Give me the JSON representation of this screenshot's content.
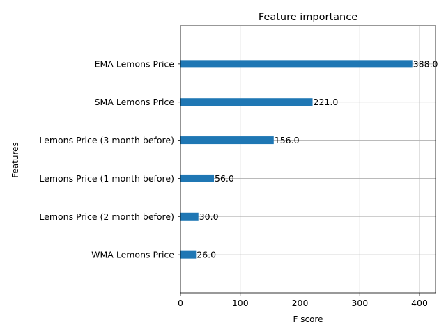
{
  "chart_data": {
    "type": "bar",
    "orientation": "horizontal",
    "title": "Feature importance",
    "xlabel": "F score",
    "ylabel": "Features",
    "categories": [
      "WMA Lemons Price",
      "Lemons Price (2 month before)",
      "Lemons Price (1 month before)",
      "Lemons Price (3 month before)",
      "SMA Lemons Price",
      "EMA Lemons Price"
    ],
    "values": [
      26.0,
      30.0,
      56.0,
      156.0,
      221.0,
      388.0
    ],
    "value_labels": [
      "26.0",
      "30.0",
      "56.0",
      "156.0",
      "221.0",
      "388.0"
    ],
    "xlim": [
      0,
      426.8
    ],
    "xticks": [
      0,
      100,
      200,
      300,
      400
    ],
    "grid": true,
    "bar_color": "#1f77b4"
  }
}
